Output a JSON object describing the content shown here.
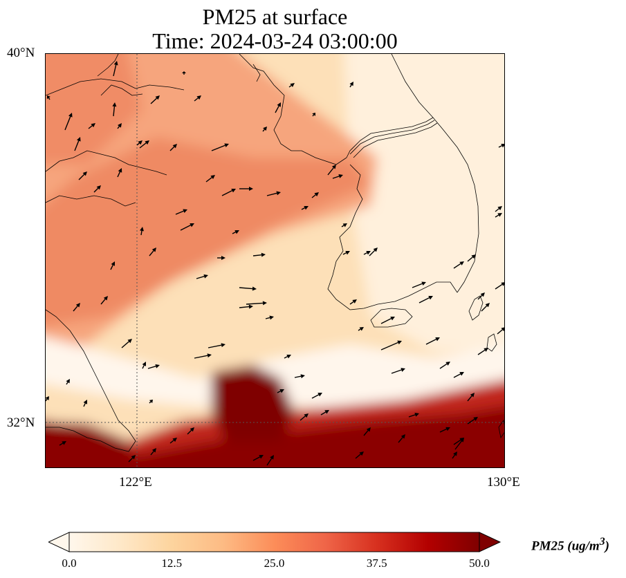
{
  "title": {
    "line1": "PM25 at surface",
    "line2": "Time: 2024-03-24 03:00:00"
  },
  "axes": {
    "lat_top": "40°N",
    "lat_bottom": "32°N",
    "lon_left": "122°E",
    "lon_right": "130°E"
  },
  "colorbar": {
    "label_var": "PM25",
    "label_unit": "(ug/m",
    "label_exp": "3",
    "label_close": ")",
    "ticks": [
      "0.0",
      "12.5",
      "25.0",
      "37.5",
      "50.0"
    ],
    "min": 0,
    "max": 50,
    "colors": [
      "#fff7ec",
      "#fee8c8",
      "#fdd49e",
      "#fdbb84",
      "#fc8d59",
      "#ef6548",
      "#d7301f",
      "#b30000",
      "#7f0000"
    ]
  },
  "chart_data": {
    "type": "heatmap",
    "title": "PM25 at surface",
    "subtitle": "Time: 2024-03-24 03:00:00",
    "variable": "PM25",
    "units": "ug/m3",
    "lon_range": [
      120,
      130
    ],
    "lat_range": [
      31,
      40
    ],
    "gridlines": {
      "lon": [
        122,
        130
      ],
      "lat": [
        32,
        40
      ]
    },
    "color_range": [
      0,
      50
    ],
    "features": [
      {
        "name": "high-band-south",
        "lon": [
          120,
          130
        ],
        "lat": [
          31,
          32.7
        ],
        "value": 50
      },
      {
        "name": "high-plume",
        "lon": [
          123.6,
          125
        ],
        "lat": [
          31.5,
          33.2
        ],
        "value": 50
      },
      {
        "name": "clean-band",
        "lon": [
          120,
          130
        ],
        "lat": [
          32.5,
          33.5
        ],
        "value": 2
      },
      {
        "name": "moderate-diagonal-plume",
        "lon": [
          120,
          126.5
        ],
        "lat": [
          34,
          38
        ],
        "value": 30
      },
      {
        "name": "korea-background",
        "lon": [
          126,
          130
        ],
        "lat": [
          33.5,
          40
        ],
        "value": 7
      }
    ]
  }
}
